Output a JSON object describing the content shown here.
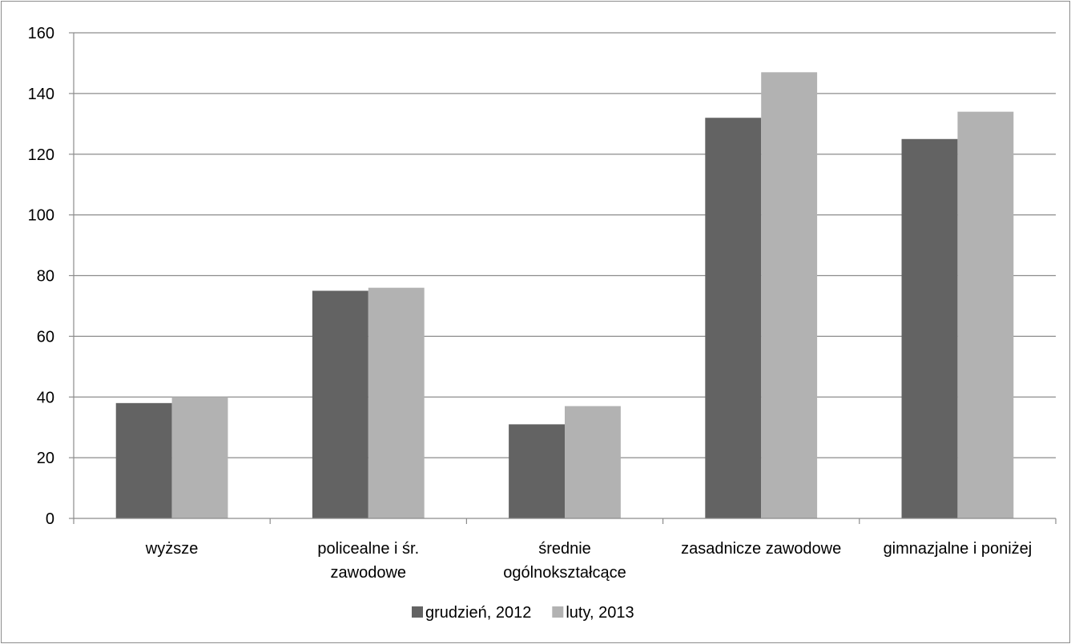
{
  "chart_data": {
    "type": "bar",
    "categories": [
      [
        "wyższe"
      ],
      [
        "policealne i śr.",
        "zawodowe"
      ],
      [
        "średnie",
        "ogólnokształcące"
      ],
      [
        "zasadnicze zawodowe"
      ],
      [
        "gimnazjalne i poniżej"
      ]
    ],
    "series": [
      {
        "name": "grudzień, 2012",
        "color": "#636363",
        "values": [
          38,
          75,
          31,
          132,
          125
        ]
      },
      {
        "name": "luty, 2013",
        "color": "#b2b2b2",
        "values": [
          40,
          76,
          37,
          147,
          134
        ]
      }
    ],
    "yticks": [
      "0",
      "20",
      "40",
      "60",
      "80",
      "100",
      "120",
      "140",
      "160"
    ],
    "ylim": [
      0,
      160
    ],
    "grid": true,
    "legend_position": "bottom"
  }
}
